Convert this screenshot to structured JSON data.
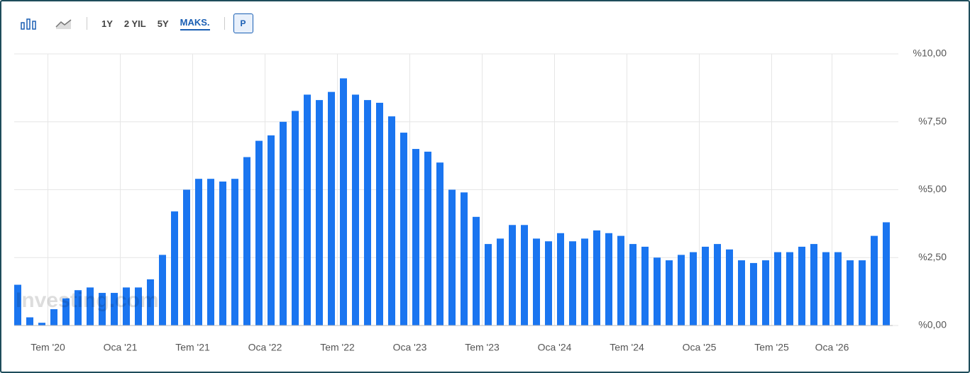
{
  "toolbar": {
    "ranges": [
      "1Y",
      "2 YIL",
      "5Y",
      "MAKS."
    ],
    "p_button": "P"
  },
  "chart_data": {
    "type": "bar",
    "watermark": "Investing.com",
    "color": "#1a75f0",
    "categories": [
      null,
      null,
      null,
      "Tem '20",
      null,
      null,
      null,
      null,
      null,
      "Oca '21",
      null,
      null,
      null,
      null,
      null,
      "Tem '21",
      null,
      null,
      null,
      null,
      null,
      "Oca '22",
      null,
      null,
      null,
      null,
      null,
      "Tem '22",
      null,
      null,
      null,
      null,
      null,
      "Oca '23",
      null,
      null,
      null,
      null,
      null,
      "Tem '23",
      null,
      null,
      null,
      null,
      null,
      "Oca '24",
      null,
      null,
      null,
      null,
      null,
      "Tem '24",
      null,
      null,
      null,
      null,
      null,
      "Oca '25",
      null,
      null,
      null,
      null,
      null,
      "Tem '25",
      null,
      null,
      null,
      null,
      "Oca '26",
      null,
      null,
      null,
      null
    ],
    "values": [
      1.5,
      0.3,
      0.1,
      0.6,
      1.0,
      1.3,
      1.4,
      1.2,
      1.2,
      1.4,
      1.4,
      1.7,
      2.6,
      4.2,
      5.0,
      5.4,
      5.4,
      5.3,
      5.4,
      6.2,
      6.8,
      7.0,
      7.5,
      7.9,
      8.5,
      8.3,
      8.6,
      9.1,
      8.5,
      8.3,
      8.2,
      7.7,
      7.1,
      6.5,
      6.4,
      6.0,
      5.0,
      4.9,
      4.0,
      3.0,
      3.2,
      3.7,
      3.7,
      3.2,
      3.1,
      3.4,
      3.1,
      3.2,
      3.5,
      3.4,
      3.3,
      3.0,
      2.9,
      2.5,
      2.4,
      2.6,
      2.7,
      2.9,
      3.0,
      2.8,
      2.4,
      2.3,
      2.4,
      2.7,
      2.7,
      2.9,
      3.0,
      2.7,
      2.7,
      2.4,
      2.4,
      3.3,
      3.8
    ],
    "ylim": [
      0,
      10
    ],
    "yticks": [
      {
        "value": 0,
        "label": "%0,00"
      },
      {
        "value": 2.5,
        "label": "%2,50"
      },
      {
        "value": 5,
        "label": "%5,00"
      },
      {
        "value": 7.5,
        "label": "%7,50"
      },
      {
        "value": 10,
        "label": "%10,00"
      }
    ],
    "grid": true
  }
}
